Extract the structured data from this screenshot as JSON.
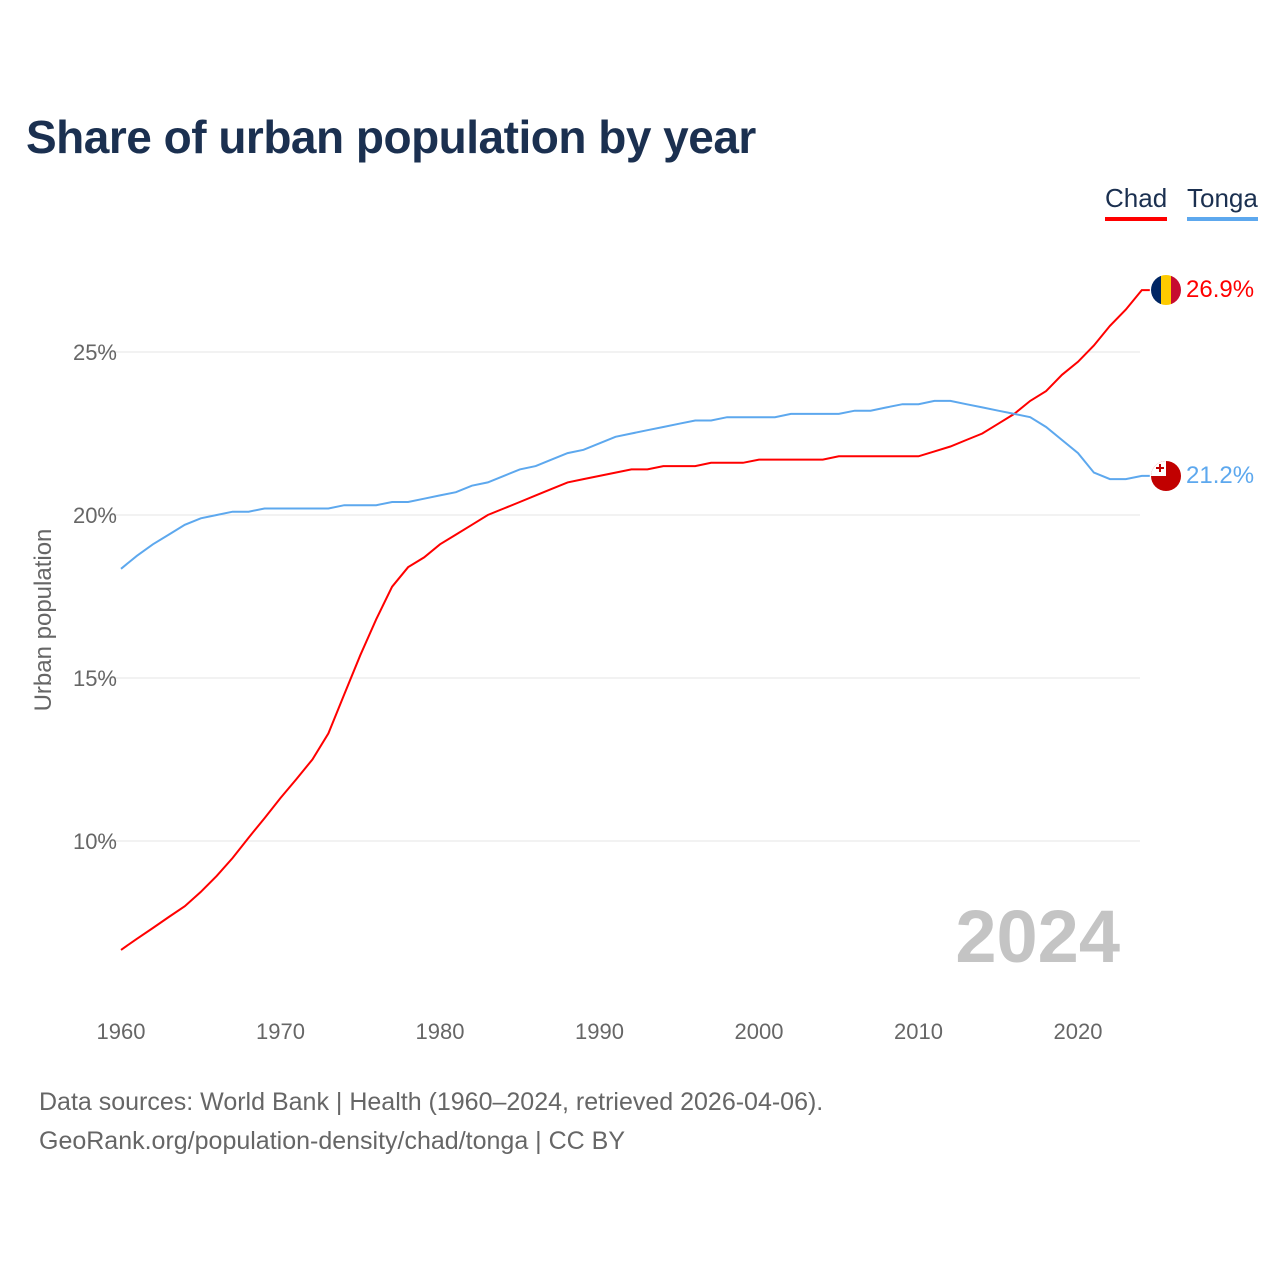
{
  "chart_data": {
    "type": "line",
    "title": "Share of urban population by year",
    "ylabel": "Urban population",
    "xlabel": "",
    "ylim": [
      5.5,
      28
    ],
    "yticks": [
      10,
      15,
      20,
      25
    ],
    "ytick_labels": [
      "10%",
      "15%",
      "20%",
      "25%"
    ],
    "xticks": [
      1960,
      1970,
      1980,
      1990,
      2000,
      2010,
      2020
    ],
    "xtick_labels": [
      "1960",
      "1970",
      "1980",
      "1990",
      "2000",
      "2010",
      "2020"
    ],
    "grid": true,
    "legend_placement": "top-right",
    "year_watermark": "2024",
    "x": [
      1960,
      1961,
      1962,
      1963,
      1964,
      1965,
      1966,
      1967,
      1968,
      1969,
      1970,
      1971,
      1972,
      1973,
      1974,
      1975,
      1976,
      1977,
      1978,
      1979,
      1980,
      1981,
      1982,
      1983,
      1984,
      1985,
      1986,
      1987,
      1988,
      1989,
      1990,
      1991,
      1992,
      1993,
      1994,
      1995,
      1996,
      1997,
      1998,
      1999,
      2000,
      2001,
      2002,
      2003,
      2004,
      2005,
      2006,
      2007,
      2008,
      2009,
      2010,
      2011,
      2012,
      2013,
      2014,
      2015,
      2016,
      2017,
      2018,
      2019,
      2020,
      2021,
      2022,
      2023,
      2024
    ],
    "series": [
      {
        "name": "Chad",
        "color": "#ff0000",
        "end_label": "26.9%",
        "values": [
          6.66,
          7.0,
          7.33,
          7.67,
          8.0,
          8.44,
          8.93,
          9.48,
          10.1,
          10.7,
          11.32,
          11.9,
          12.5,
          13.3,
          14.5,
          15.7,
          16.8,
          17.8,
          18.4,
          18.7,
          19.1,
          19.4,
          19.7,
          20.0,
          20.2,
          20.4,
          20.6,
          20.8,
          21.0,
          21.1,
          21.2,
          21.3,
          21.4,
          21.4,
          21.5,
          21.5,
          21.5,
          21.6,
          21.6,
          21.6,
          21.7,
          21.7,
          21.7,
          21.7,
          21.7,
          21.8,
          21.8,
          21.8,
          21.8,
          21.8,
          21.8,
          21.95,
          22.1,
          22.3,
          22.5,
          22.8,
          23.1,
          23.5,
          23.8,
          24.3,
          24.7,
          25.2,
          25.8,
          26.3,
          26.9
        ]
      },
      {
        "name": "Tonga",
        "color": "#5da8ee",
        "end_label": "21.2%",
        "values": [
          18.35,
          18.75,
          19.1,
          19.4,
          19.7,
          19.9,
          20.0,
          20.1,
          20.1,
          20.2,
          20.2,
          20.2,
          20.2,
          20.2,
          20.3,
          20.3,
          20.3,
          20.4,
          20.4,
          20.5,
          20.6,
          20.7,
          20.9,
          21.0,
          21.2,
          21.4,
          21.5,
          21.7,
          21.9,
          22.0,
          22.2,
          22.4,
          22.5,
          22.6,
          22.7,
          22.8,
          22.9,
          22.9,
          23.0,
          23.0,
          23.0,
          23.0,
          23.1,
          23.1,
          23.1,
          23.1,
          23.2,
          23.2,
          23.3,
          23.4,
          23.4,
          23.5,
          23.5,
          23.4,
          23.3,
          23.2,
          23.1,
          23.0,
          22.7,
          22.3,
          21.9,
          21.3,
          21.1,
          21.1,
          21.2
        ]
      }
    ]
  },
  "footer": {
    "line1": "Data sources: World Bank | Health (1960–2024, retrieved 2026-04-06).",
    "line2": "GeoRank.org/population-density/chad/tonga | CC BY"
  }
}
